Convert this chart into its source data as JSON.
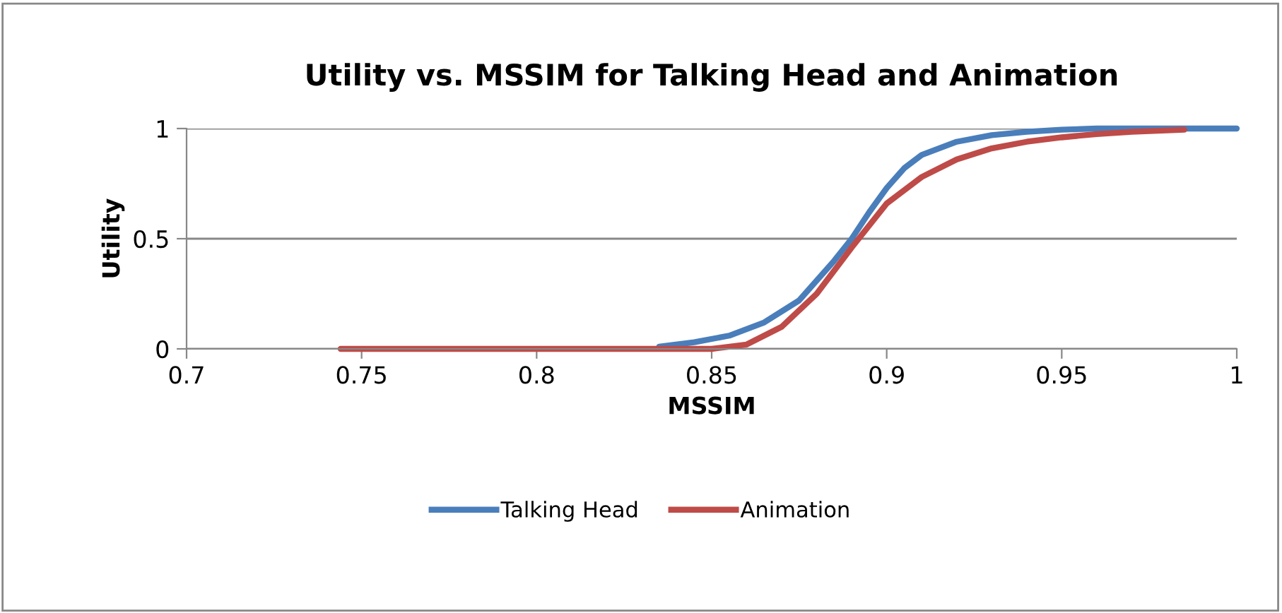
{
  "chart_data": {
    "type": "line",
    "title": "Utility vs. MSSIM for Talking Head and Animation",
    "xlabel": "MSSIM",
    "ylabel": "Utility",
    "series": [
      {
        "name": "Talking Head",
        "color": "#4a7ebb",
        "x": [
          0.835,
          0.845,
          0.855,
          0.865,
          0.875,
          0.885,
          0.89,
          0.895,
          0.9,
          0.905,
          0.91,
          0.92,
          0.93,
          0.94,
          0.95,
          0.96,
          1
        ],
        "values": [
          0.01,
          0.03,
          0.06,
          0.12,
          0.22,
          0.4,
          0.5,
          0.62,
          0.73,
          0.82,
          0.88,
          0.94,
          0.97,
          0.985,
          0.995,
          1,
          1
        ]
      },
      {
        "name": "Animation",
        "color": "#be4b48",
        "x": [
          0.744,
          0.8,
          0.85,
          0.86,
          0.87,
          0.88,
          0.89,
          0.9,
          0.91,
          0.92,
          0.93,
          0.94,
          0.95,
          0.96,
          0.97,
          0.985
        ],
        "values": [
          0,
          0,
          0,
          0.02,
          0.1,
          0.25,
          0.46,
          0.66,
          0.78,
          0.86,
          0.91,
          0.94,
          0.96,
          0.975,
          0.985,
          0.995
        ]
      }
    ],
    "xlim": [
      0.7,
      1
    ],
    "xticks": [
      0.7,
      0.75,
      0.8,
      0.85,
      0.9,
      0.95,
      1
    ],
    "ylim": [
      0,
      1
    ],
    "yticks": [
      0,
      0.5,
      1
    ],
    "grid": "y",
    "legend": "bottom",
    "marker": "none",
    "line_style": "solid"
  }
}
